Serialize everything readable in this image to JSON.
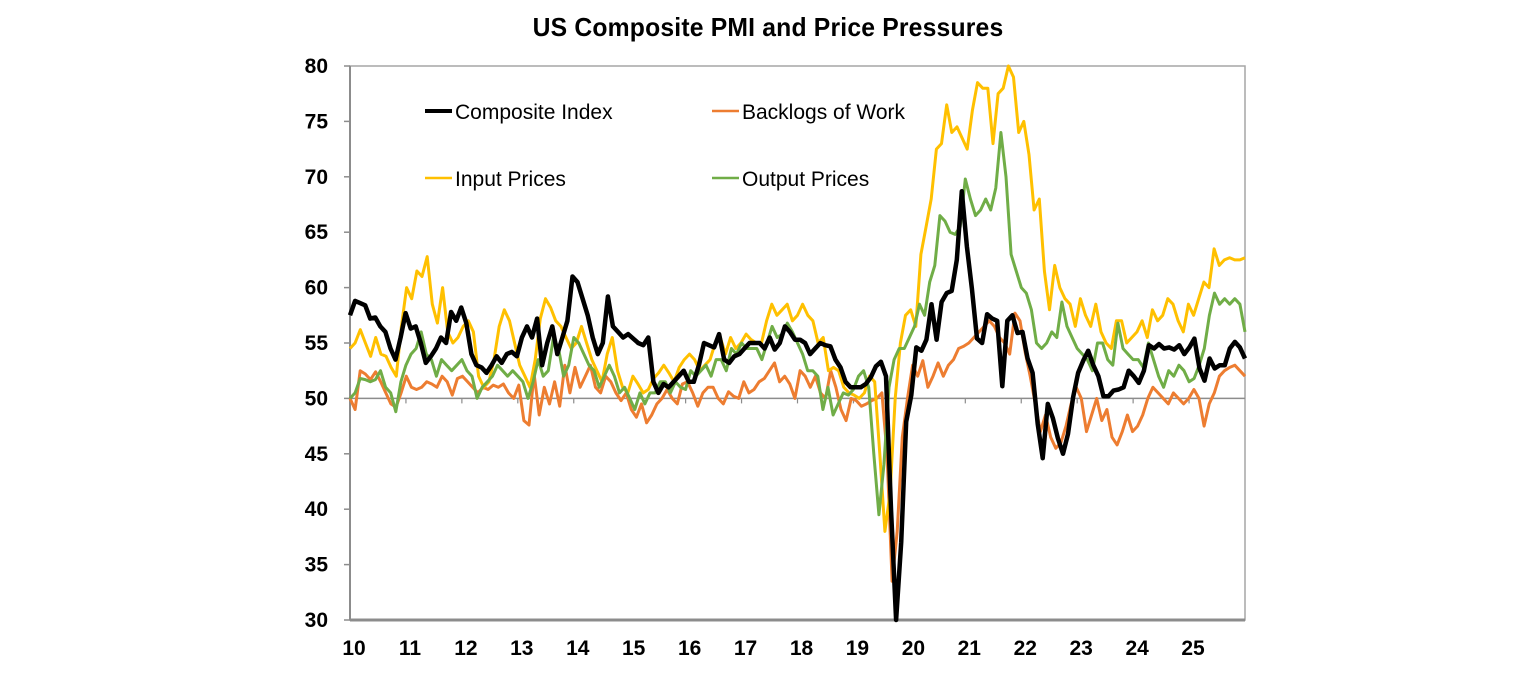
{
  "chart_data": {
    "type": "line",
    "title": "US Composite PMI and Price Pressures",
    "xlabel": "",
    "ylabel": "",
    "ylim": [
      30,
      80
    ],
    "yticks": [
      30,
      35,
      40,
      45,
      50,
      55,
      60,
      65,
      70,
      75,
      80
    ],
    "xticks": [
      "10",
      "11",
      "12",
      "13",
      "14",
      "15",
      "16",
      "17",
      "18",
      "19",
      "20",
      "21",
      "22",
      "23",
      "24",
      "25"
    ],
    "x_start": "2010-01",
    "x_end": "2025-10",
    "frequency": "monthly",
    "reference_line": 50,
    "grid": false,
    "legend_position": "top-left, inside, two columns",
    "series": [
      {
        "name": "Composite Index",
        "color": "#000000",
        "values": [
          57.5,
          58.8,
          58.6,
          58.4,
          57.2,
          57.3,
          56.5,
          56.0,
          54.5,
          53.5,
          55.5,
          57.7,
          56.3,
          56.5,
          55.0,
          53.2,
          53.8,
          54.5,
          55.5,
          55.0,
          57.8,
          57.0,
          58.2,
          56.8,
          54.0,
          53.0,
          52.8,
          52.3,
          53.0,
          53.8,
          53.2,
          54.0,
          54.2,
          53.8,
          55.5,
          56.5,
          55.5,
          57.2,
          53.0,
          55.0,
          56.5,
          54.0,
          55.5,
          57.0,
          61.0,
          60.5,
          59.0,
          57.5,
          55.5,
          54.0,
          55.0,
          59.2,
          56.5,
          56.0,
          55.5,
          55.8,
          55.4,
          55.0,
          54.8,
          55.5,
          51.5,
          50.5,
          51.3,
          51.0,
          51.5,
          52.0,
          52.5,
          51.5,
          51.5,
          53.0,
          55.0,
          54.8,
          54.6,
          55.8,
          53.5,
          53.2,
          53.8,
          54.0,
          54.5,
          55.0,
          55.0,
          55.0,
          54.5,
          55.5,
          54.4,
          55.0,
          56.5,
          56.0,
          55.3,
          55.3,
          55.0,
          54.0,
          54.5,
          55.0,
          54.8,
          54.7,
          53.5,
          52.8,
          51.5,
          51.0,
          51.0,
          51.0,
          51.3,
          51.9,
          52.9,
          53.3,
          52.0,
          40.0,
          30.0,
          37.0,
          47.9,
          50.3,
          54.6,
          54.3,
          55.3,
          58.5,
          55.3,
          58.7,
          59.5,
          59.7,
          62.5,
          68.7,
          63.7,
          59.9,
          55.4,
          55.0,
          57.6,
          57.2,
          57.0,
          51.1,
          57.0,
          57.5,
          55.9,
          56.0,
          53.6,
          52.3,
          47.7,
          44.6,
          49.5,
          48.2,
          46.4,
          45.0,
          46.8,
          50.1,
          52.3,
          53.4,
          54.3,
          53.0,
          52.0,
          50.2,
          50.2,
          50.7,
          50.8,
          51.0,
          52.5,
          52.0,
          51.4,
          52.5,
          54.8,
          54.5,
          54.9,
          54.5,
          54.6,
          54.4,
          54.8,
          54.0,
          54.6,
          55.4,
          52.7,
          51.6,
          53.6,
          52.7,
          53.0,
          53.0,
          54.5,
          55.1,
          54.6,
          53.6
        ]
      },
      {
        "name": "Backlogs of Work",
        "color": "#ED7D31",
        "values": [
          50.0,
          49.0,
          52.5,
          52.2,
          51.7,
          52.4,
          51.5,
          50.5,
          49.5,
          49.2,
          50.5,
          52.0,
          51.0,
          50.8,
          51.0,
          51.5,
          51.3,
          51.0,
          52.0,
          51.5,
          50.3,
          51.8,
          52.0,
          51.5,
          51.0,
          50.5,
          51.0,
          50.8,
          51.2,
          51.0,
          51.3,
          50.5,
          50.0,
          51.2,
          48.0,
          47.6,
          52.2,
          48.5,
          51.0,
          49.5,
          51.5,
          49.3,
          53.0,
          50.5,
          52.8,
          51.0,
          52.0,
          53.0,
          51.0,
          50.5,
          52.0,
          51.5,
          50.5,
          49.8,
          50.5,
          49.0,
          48.3,
          49.5,
          47.8,
          48.5,
          49.5,
          50.0,
          50.8,
          50.0,
          49.5,
          51.3,
          51.5,
          50.5,
          49.3,
          50.5,
          51.0,
          51.0,
          50.0,
          49.5,
          50.6,
          50.2,
          50.0,
          51.5,
          50.5,
          50.8,
          51.5,
          51.8,
          52.5,
          53.2,
          51.5,
          52.0,
          51.3,
          50.0,
          52.5,
          52.0,
          51.0,
          52.0,
          50.5,
          50.0,
          52.5,
          51.0,
          49.0,
          48.0,
          50.0,
          49.8,
          49.3,
          49.5,
          49.8,
          50.0,
          50.5,
          45.0,
          33.5,
          38.0,
          46.5,
          50.0,
          53.0,
          52.0,
          53.4,
          51.0,
          52.0,
          53.2,
          52.0,
          53.0,
          53.5,
          54.5,
          54.7,
          55.0,
          55.5,
          56.0,
          56.5,
          57.0,
          56.5,
          55.5,
          55.0,
          54.0,
          57.7,
          57.0,
          54.2,
          52.0,
          49.5,
          47.0,
          48.5,
          46.5,
          45.5,
          46.0,
          47.5,
          49.5,
          51.0,
          50.0,
          47.0,
          48.5,
          50.0,
          48.0,
          49.0,
          46.5,
          45.8,
          47.0,
          48.5,
          47.0,
          47.5,
          48.5,
          50.0,
          51.0,
          50.5,
          50.0,
          49.5,
          50.5,
          50.0,
          49.5,
          50.0,
          50.8,
          50.0,
          47.5,
          49.5,
          50.5,
          52.0,
          52.5,
          52.8,
          53.0,
          52.5,
          52.0
        ]
      },
      {
        "name": "Input Prices",
        "color": "#FFC000",
        "values": [
          54.5,
          55.0,
          56.2,
          55.0,
          53.8,
          55.5,
          54.0,
          53.8,
          52.8,
          52.0,
          56.5,
          60.0,
          59.0,
          61.5,
          61.0,
          62.8,
          58.5,
          56.8,
          60.0,
          56.0,
          55.0,
          55.5,
          56.5,
          57.0,
          56.0,
          52.0,
          51.0,
          51.5,
          53.5,
          56.5,
          58.0,
          57.0,
          55.0,
          53.0,
          52.0,
          51.0,
          53.5,
          57.2,
          59.0,
          58.2,
          57.0,
          56.5,
          55.5,
          54.5,
          55.0,
          56.5,
          55.0,
          53.5,
          52.5,
          51.5,
          54.0,
          55.5,
          52.5,
          51.0,
          50.5,
          52.0,
          51.3,
          50.5,
          50.8,
          51.8,
          52.3,
          53.0,
          52.3,
          51.5,
          52.8,
          53.5,
          54.0,
          53.5,
          52.5,
          53.0,
          53.5,
          55.0,
          55.5,
          54.0,
          55.5,
          54.5,
          55.0,
          55.8,
          55.3,
          55.0,
          55.0,
          57.0,
          58.5,
          57.5,
          58.0,
          58.5,
          57.0,
          57.5,
          58.5,
          57.5,
          57.0,
          55.0,
          55.5,
          52.5,
          52.8,
          52.5,
          51.0,
          50.5,
          50.3,
          50.0,
          50.5,
          52.0,
          51.5,
          45.0,
          38.0,
          41.5,
          50.0,
          55.0,
          57.5,
          58.0,
          56.5,
          63.0,
          65.5,
          68.0,
          72.5,
          73.0,
          76.5,
          74.0,
          74.5,
          73.5,
          72.5,
          76.0,
          78.5,
          78.0,
          78.0,
          73.0,
          77.5,
          78.0,
          81.0,
          79.0,
          74.0,
          75.0,
          72.0,
          67.0,
          68.0,
          61.5,
          58.0,
          62.0,
          60.0,
          59.0,
          58.5,
          56.5,
          59.0,
          57.5,
          56.5,
          58.5,
          56.0,
          55.0,
          54.5,
          57.0,
          57.0,
          55.0,
          55.5,
          56.0,
          57.0,
          55.5,
          58.0,
          57.0,
          57.5,
          59.0,
          58.5,
          57.0,
          56.0,
          58.5,
          57.5,
          59.0,
          60.5,
          60.0,
          63.5,
          62.0,
          62.5,
          62.7,
          62.5,
          62.5,
          62.7
        ]
      },
      {
        "name": "Output Prices",
        "color": "#70AD47",
        "values": [
          50.0,
          50.5,
          51.8,
          51.7,
          51.5,
          51.7,
          52.5,
          51.0,
          50.5,
          48.8,
          51.5,
          53.0,
          54.0,
          54.5,
          56.0,
          54.0,
          53.5,
          52.0,
          53.5,
          53.0,
          52.5,
          53.0,
          53.5,
          52.5,
          52.0,
          50.0,
          51.0,
          51.5,
          52.0,
          53.0,
          52.5,
          52.0,
          52.5,
          52.0,
          51.5,
          50.0,
          51.5,
          53.5,
          52.0,
          52.5,
          55.5,
          54.5,
          52.0,
          53.0,
          55.5,
          55.0,
          54.0,
          53.0,
          52.5,
          51.0,
          52.0,
          53.0,
          52.0,
          50.5,
          51.0,
          50.0,
          49.0,
          50.5,
          49.5,
          50.5,
          50.5,
          51.5,
          51.5,
          50.5,
          51.5,
          51.0,
          50.8,
          52.5,
          52.0,
          52.5,
          53.0,
          52.0,
          53.5,
          53.5,
          52.5,
          54.5,
          54.0,
          55.0,
          54.5,
          54.5,
          54.5,
          53.5,
          55.0,
          56.5,
          55.5,
          55.8,
          56.8,
          56.0,
          55.0,
          54.0,
          52.5,
          52.5,
          52.0,
          49.0,
          51.0,
          48.5,
          49.5,
          50.5,
          50.3,
          50.8,
          52.0,
          52.5,
          51.0,
          45.0,
          39.5,
          44.0,
          51.0,
          53.5,
          54.5,
          54.5,
          55.5,
          56.5,
          58.5,
          57.5,
          60.5,
          62.0,
          66.5,
          66.0,
          65.0,
          64.8,
          65.5,
          69.8,
          68.0,
          66.5,
          67.0,
          68.0,
          67.0,
          69.0,
          74.0,
          70.0,
          63.0,
          61.5,
          60.0,
          59.5,
          58.0,
          55.0,
          54.5,
          55.0,
          56.0,
          55.5,
          58.7,
          56.5,
          55.5,
          54.5,
          54.0,
          53.5,
          52.5,
          55.0,
          55.0,
          53.5,
          53.0,
          56.8,
          54.5,
          54.0,
          53.5,
          53.5,
          52.8,
          55.0,
          53.5,
          52.0,
          51.0,
          52.5,
          52.0,
          53.0,
          52.5,
          51.5,
          51.8,
          53.0,
          54.5,
          57.5,
          59.5,
          58.5,
          59.0,
          58.5,
          59.0,
          58.5,
          56.0
        ]
      }
    ]
  }
}
